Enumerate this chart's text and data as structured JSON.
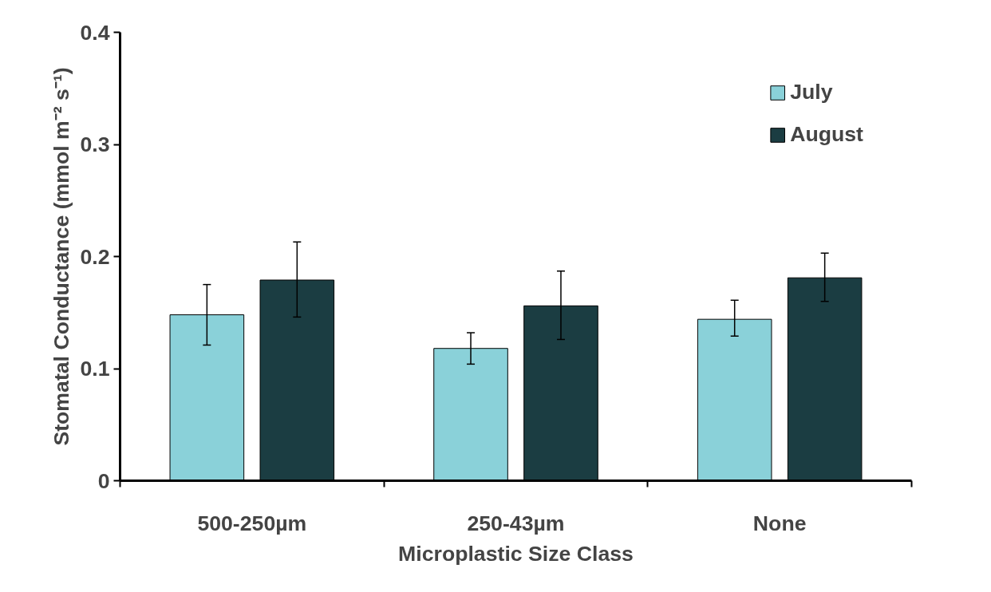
{
  "chart_data": {
    "type": "bar",
    "xlabel": "Microplastic Size Class",
    "ylabel": "Stomatal Conductance (mmol m⁻² s⁻¹)",
    "categories": [
      "500-250µm",
      "250-43µm",
      "None"
    ],
    "series": [
      {
        "name": "July",
        "color": "#8ad1d9",
        "values": [
          0.148,
          0.118,
          0.144
        ],
        "errors": [
          [
            0.121,
            0.175
          ],
          [
            0.104,
            0.132
          ],
          [
            0.129,
            0.161
          ]
        ]
      },
      {
        "name": "August",
        "color": "#1b3d42",
        "values": [
          0.179,
          0.156,
          0.181
        ],
        "errors": [
          [
            0.146,
            0.213
          ],
          [
            0.126,
            0.187
          ],
          [
            0.16,
            0.203
          ]
        ]
      }
    ],
    "ylim": [
      0,
      0.4
    ],
    "yticks": [
      0,
      0.1,
      0.2,
      0.3,
      0.4
    ],
    "grid": false,
    "legend": "top right"
  }
}
